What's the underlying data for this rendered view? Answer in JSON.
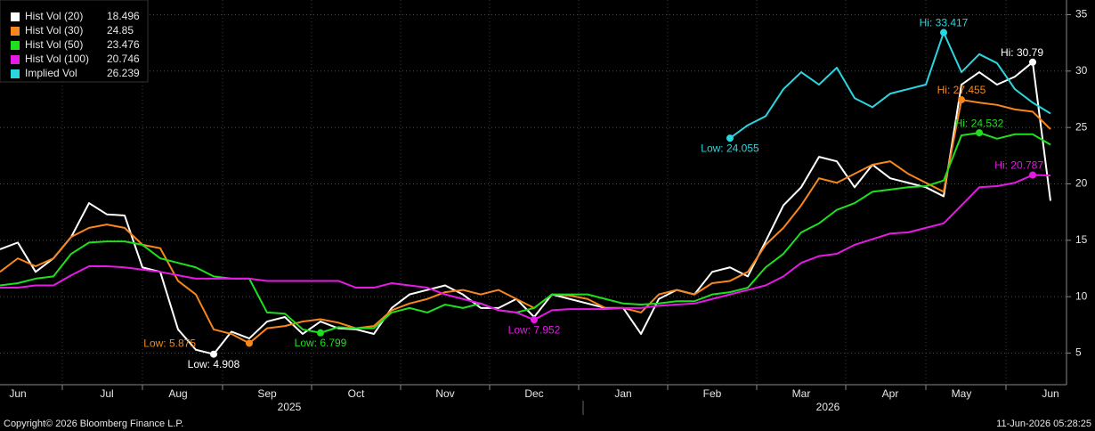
{
  "chart_data": {
    "type": "line",
    "categories": [
      null,
      "Jun",
      null,
      null,
      null,
      null,
      "Jul",
      null,
      null,
      null,
      "Aug",
      null,
      null,
      null,
      null,
      "Sep",
      null,
      null,
      null,
      null,
      "Oct",
      null,
      null,
      null,
      null,
      "Nov",
      null,
      null,
      null,
      null,
      "Dec",
      null,
      null,
      null,
      null,
      "Jan",
      null,
      null,
      null,
      null,
      "Feb",
      null,
      null,
      null,
      null,
      "Mar",
      null,
      null,
      null,
      null,
      "Apr",
      null,
      null,
      null,
      "May",
      null,
      null,
      null,
      null,
      "Jun"
    ],
    "year_labels": [
      "2025",
      "2026"
    ],
    "series": [
      {
        "name": "Hist Vol (20)",
        "color": "#ffffff",
        "values": [
          14.2,
          14.8,
          12.2,
          13.4,
          15.3,
          18.3,
          17.3,
          17.2,
          12.6,
          12.2,
          7.1,
          5.3,
          4.908,
          6.9,
          6.3,
          7.8,
          8.2,
          6.7,
          7.8,
          7.2,
          7.1,
          6.7,
          9.0,
          10.2,
          10.6,
          11.0,
          10.2,
          9.0,
          9.0,
          9.8,
          8.2,
          10.2,
          9.8,
          9.4,
          9.0,
          9.0,
          6.7,
          9.8,
          10.6,
          10.2,
          12.2,
          12.6,
          11.8,
          14.9,
          18.1,
          19.7,
          22.4,
          22.0,
          19.7,
          21.7,
          20.5,
          20.1,
          19.7,
          18.9,
          28.8,
          29.9,
          28.8,
          29.5,
          30.79,
          18.496
        ],
        "annotations": [
          {
            "text": "Low: 4.908",
            "value": 4.908
          },
          {
            "text": "Hi: 30.79",
            "value": 30.79
          }
        ]
      },
      {
        "name": "Hist Vol (30)",
        "color": "#f7861c",
        "values": [
          12.2,
          13.4,
          12.7,
          13.4,
          15.3,
          16.1,
          16.4,
          16.1,
          14.6,
          14.3,
          11.4,
          10.2,
          7.1,
          6.7,
          5.875,
          7.2,
          7.4,
          7.8,
          8.0,
          7.7,
          7.2,
          7.4,
          8.8,
          9.4,
          9.8,
          10.4,
          10.6,
          10.2,
          10.6,
          9.8,
          9.0,
          10.2,
          10.1,
          9.8,
          9.0,
          9.0,
          8.6,
          10.2,
          10.6,
          10.2,
          11.2,
          11.4,
          12.2,
          14.6,
          16.1,
          18.1,
          20.5,
          20.1,
          20.9,
          21.7,
          22.0,
          20.9,
          20.1,
          19.3,
          27.455,
          27.2,
          27.0,
          26.6,
          26.4,
          24.85
        ],
        "annotations": [
          {
            "text": "Low: 5.875",
            "value": 5.875
          },
          {
            "text": "Hi: 27.455",
            "value": 27.455
          }
        ]
      },
      {
        "name": "Hist Vol (50)",
        "color": "#1ee01e",
        "values": [
          11.0,
          11.2,
          11.6,
          11.8,
          13.8,
          14.8,
          14.9,
          14.9,
          14.6,
          13.4,
          13.0,
          12.6,
          11.8,
          11.6,
          11.6,
          8.6,
          8.5,
          7.1,
          6.799,
          7.3,
          7.2,
          7.2,
          8.6,
          9.0,
          8.6,
          9.3,
          9.0,
          9.4,
          8.8,
          8.6,
          9.0,
          10.2,
          10.2,
          10.2,
          9.8,
          9.4,
          9.3,
          9.4,
          9.6,
          9.6,
          10.2,
          10.4,
          10.8,
          12.6,
          13.8,
          15.7,
          16.5,
          17.7,
          18.3,
          19.3,
          19.5,
          19.7,
          19.8,
          20.3,
          24.3,
          24.532,
          24.0,
          24.4,
          24.4,
          23.476
        ],
        "annotations": [
          {
            "text": "Low: 6.799",
            "value": 6.799
          },
          {
            "text": "Hi: 24.532",
            "value": 24.532
          }
        ]
      },
      {
        "name": "Hist Vol (100)",
        "color": "#e619e6",
        "values": [
          10.8,
          10.8,
          11.0,
          11.0,
          11.9,
          12.7,
          12.7,
          12.6,
          12.4,
          12.2,
          11.9,
          11.6,
          11.6,
          11.6,
          11.6,
          11.4,
          11.4,
          11.4,
          11.4,
          11.4,
          10.8,
          10.8,
          11.2,
          11.0,
          10.8,
          10.2,
          9.8,
          9.4,
          8.8,
          8.6,
          7.952,
          8.8,
          8.9,
          8.9,
          8.9,
          9.0,
          9.0,
          9.2,
          9.3,
          9.4,
          9.8,
          10.2,
          10.6,
          11.0,
          11.8,
          13.0,
          13.6,
          13.8,
          14.6,
          15.1,
          15.6,
          15.7,
          16.1,
          16.5,
          18.1,
          19.7,
          19.8,
          20.1,
          20.787,
          20.746
        ],
        "annotations": [
          {
            "text": "Low: 7.952",
            "value": 7.952
          },
          {
            "text": "Hi: 20.787",
            "value": 20.787
          }
        ]
      },
      {
        "name": "Implied Vol",
        "color": "#2ad6e0",
        "values": [
          null,
          null,
          null,
          null,
          null,
          null,
          null,
          null,
          null,
          null,
          null,
          null,
          null,
          null,
          null,
          null,
          null,
          null,
          null,
          null,
          null,
          null,
          null,
          null,
          null,
          null,
          null,
          null,
          null,
          null,
          null,
          null,
          null,
          null,
          null,
          null,
          null,
          null,
          null,
          null,
          null,
          24.055,
          25.2,
          26.0,
          28.4,
          29.9,
          28.8,
          30.3,
          27.6,
          26.8,
          28.0,
          28.4,
          28.8,
          33.417,
          29.9,
          31.5,
          30.7,
          28.4,
          27.2,
          26.239
        ],
        "annotations": [
          {
            "text": "Low: 24.055",
            "value": 24.055
          },
          {
            "text": "Hi: 33.417",
            "value": 33.417
          }
        ]
      }
    ],
    "ylim": [
      2.2,
      36.3
    ],
    "yticks": [
      5,
      10,
      15,
      20,
      25,
      30,
      35
    ],
    "grid": true,
    "legend": "upper left",
    "footer_left": "Copyright© 2026 Bloomberg Finance L.P.",
    "footer_right": "11-Jun-2026 05:28:25"
  }
}
